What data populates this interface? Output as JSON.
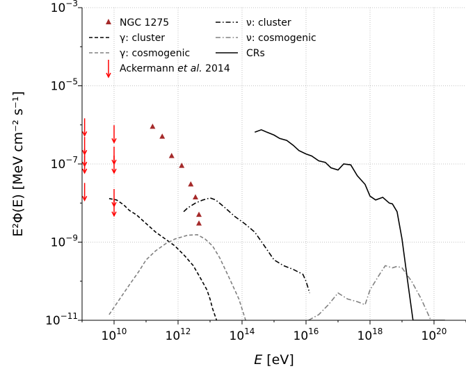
{
  "chart_data": {
    "type": "line",
    "xlabel": "E [eV]",
    "ylabel": "E²Φ(E) [MeV cm⁻² s⁻¹]",
    "x_scale": "log",
    "y_scale": "log",
    "xlim": [
      1000000000.0,
      1e+21
    ],
    "ylim": [
      1e-11,
      0.001
    ],
    "x_ticks": [
      {
        "value": 10000000000.0,
        "label": "10",
        "exp": "10"
      },
      {
        "value": 1000000000000.0,
        "label": "10",
        "exp": "12"
      },
      {
        "value": 100000000000000.0,
        "label": "10",
        "exp": "14"
      },
      {
        "value": 1e+16,
        "label": "10",
        "exp": "16"
      },
      {
        "value": 1e+18,
        "label": "10",
        "exp": "18"
      },
      {
        "value": 1e+20,
        "label": "10",
        "exp": "20"
      }
    ],
    "y_ticks": [
      {
        "value": 1e-11,
        "label": "10",
        "exp": "−11"
      },
      {
        "value": 1e-09,
        "label": "10",
        "exp": "−9"
      },
      {
        "value": 1e-07,
        "label": "10",
        "exp": "−7"
      },
      {
        "value": 1e-05,
        "label": "10",
        "exp": "−5"
      },
      {
        "value": 0.001,
        "label": "10",
        "exp": "−3"
      }
    ],
    "grid": true,
    "legend_position": "top-left",
    "legend": [
      {
        "label": "NGC 1275",
        "marker": "triangle",
        "color": "#a52a2a"
      },
      {
        "label": "γ: cluster",
        "style": "dashed",
        "color": "#000000"
      },
      {
        "label": "γ: cosmogenic",
        "style": "dashed",
        "color": "#808080"
      },
      {
        "label": "Ackermann et al. 2014",
        "label_parts": [
          "Ackermann ",
          "et al.",
          "  2014"
        ],
        "marker": "down-arrow",
        "color": "#ff0000"
      },
      {
        "label": "ν: cluster",
        "style": "dashdot",
        "color": "#000000"
      },
      {
        "label": "ν: cosmogenic",
        "style": "dashdot",
        "color": "#808080"
      },
      {
        "label": "CRs",
        "style": "solid",
        "color": "#000000"
      }
    ],
    "series": [
      {
        "name": "NGC 1275",
        "type": "scatter",
        "marker": "triangle",
        "color": "#a52a2a",
        "x": [
          160000000000.0,
          320000000000.0,
          630000000000.0,
          1300000000000.0,
          2500000000000.0,
          3500000000000.0,
          4500000000000.0,
          4500000000000.0
        ],
        "y": [
          9e-07,
          5e-07,
          1.6e-07,
          9e-08,
          3e-08,
          1.4e-08,
          5e-09,
          3e-09
        ]
      },
      {
        "name": "Ackermann et al. 2014",
        "type": "upper_limit",
        "color": "#ff0000",
        "x": [
          1200000000.0,
          1200000000.0,
          1200000000.0,
          1200000000.0,
          1200000000.0,
          10000000000.0,
          10000000000.0,
          10000000000.0,
          10000000000.0,
          10000000000.0
        ],
        "y": [
          9e-07,
          3e-07,
          1.5e-07,
          1e-07,
          2e-08,
          6e-07,
          1.7e-07,
          1e-07,
          1.4e-08,
          8e-09
        ]
      },
      {
        "name": "γ: cluster",
        "type": "line",
        "style": "dashed",
        "color": "#000000",
        "x": [
          7000000000.0,
          12000000000.0,
          20000000000.0,
          30000000000.0,
          50000000000.0,
          100000000000.0,
          200000000000.0,
          400000000000.0,
          800000000000.0,
          1600000000000.0,
          3000000000000.0,
          5000000000000.0,
          8000000000000.0,
          10000000000000.0,
          12000000000000.0,
          16000000000000.0
        ],
        "y": [
          1.3e-08,
          1.2e-08,
          9e-09,
          6.5e-09,
          5e-09,
          3e-09,
          1.8e-09,
          1.2e-09,
          8e-10,
          4.5e-10,
          2.5e-10,
          1.2e-10,
          6e-11,
          3.5e-11,
          2e-11,
          1e-11
        ]
      },
      {
        "name": "γ: cosmogenic",
        "type": "line",
        "style": "dashed",
        "color": "#808080",
        "x": [
          7000000000.0,
          15000000000.0,
          30000000000.0,
          60000000000.0,
          100000000000.0,
          200000000000.0,
          400000000000.0,
          800000000000.0,
          2000000000000.0,
          4000000000000.0,
          7000000000000.0,
          12000000000000.0,
          20000000000000.0,
          40000000000000.0,
          80000000000000.0,
          130000000000000.0
        ],
        "y": [
          1.4e-11,
          3.5e-11,
          8e-11,
          1.8e-10,
          3.5e-10,
          6e-10,
          9e-10,
          1.2e-09,
          1.5e-09,
          1.55e-09,
          1.2e-09,
          8e-10,
          4e-10,
          1.2e-10,
          3.5e-11,
          1e-11
        ]
      },
      {
        "name": "ν: cluster",
        "type": "line",
        "style": "dashdot",
        "color": "#000000",
        "x": [
          1500000000000.0,
          2000000000000.0,
          3500000000000.0,
          6000000000000.0,
          10000000000000.0,
          15000000000000.0,
          30000000000000.0,
          60000000000000.0,
          120000000000000.0,
          250000000000000.0,
          500000000000000.0,
          1000000000000000.0,
          2000000000000000.0,
          4000000000000000.0,
          8000000000000000.0,
          1e+16,
          1.3e+16
        ],
        "y": [
          6e-09,
          7.5e-09,
          1e-08,
          1.2e-08,
          1.35e-08,
          1.2e-08,
          7.5e-09,
          4.5e-09,
          3e-09,
          1.8e-09,
          8e-10,
          3.5e-10,
          2.5e-10,
          2e-10,
          1.5e-10,
          1e-10,
          5e-11
        ]
      },
      {
        "name": "ν: cosmogenic",
        "type": "line",
        "style": "dashdot",
        "color": "#808080",
        "x": [
          1.2e+16,
          2.5e+16,
          5e+16,
          1e+17,
          2e+17,
          4e+17,
          7e+17,
          1e+18,
          2e+18,
          3e+18,
          5e+18,
          7e+18,
          1e+19,
          2e+19,
          4e+19,
          8e+19
        ],
        "y": [
          1e-11,
          1.4e-11,
          2.5e-11,
          5e-11,
          3.5e-11,
          3e-11,
          2.5e-11,
          6e-11,
          1.5e-10,
          2.5e-10,
          2.2e-10,
          2.4e-10,
          2.2e-10,
          1e-10,
          3.5e-11,
          1e-11
        ]
      },
      {
        "name": "CRs",
        "type": "line",
        "style": "solid",
        "color": "#000000",
        "x": [
          250000000000000.0,
          400000000000000.0,
          600000000000000.0,
          1000000000000000.0,
          1500000000000000.0,
          2500000000000000.0,
          4000000000000000.0,
          6000000000000000.0,
          1e+16,
          1.5e+16,
          2.5e+16,
          4e+16,
          6e+16,
          1e+17,
          1.5e+17,
          2.5e+17,
          4e+17,
          7e+17,
          1e+18,
          1.5e+18,
          2.5e+18,
          4e+18,
          5e+18,
          7e+18,
          1e+19,
          1.5e+19,
          2.2e+19,
          3e+19,
          5e+19,
          8e+19,
          1.3e+20,
          2.2e+20
        ],
        "y": [
          6.5e-07,
          7.5e-07,
          6.5e-07,
          5.5e-07,
          4.5e-07,
          4e-07,
          3e-07,
          2.2e-07,
          1.8e-07,
          1.6e-07,
          1.2e-07,
          1.1e-07,
          8e-08,
          7e-08,
          1e-07,
          9.5e-08,
          5e-08,
          3e-08,
          1.5e-08,
          1.2e-08,
          1.4e-08,
          1e-08,
          9.5e-09,
          6e-09,
          1.2e-09,
          1e-10,
          1e-11,
          1e-11,
          1e-11,
          1e-11,
          1e-11,
          1e-11
        ]
      }
    ]
  }
}
